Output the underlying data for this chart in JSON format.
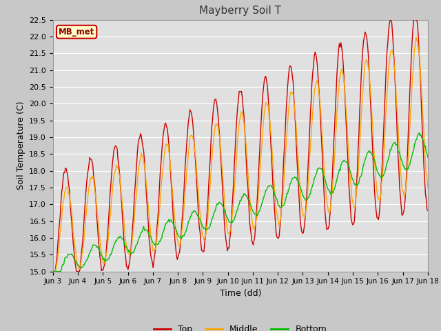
{
  "title": "Mayberry Soil T",
  "xlabel": "Time (dd)",
  "ylabel": "Soil Temperature (C)",
  "ylim": [
    15.0,
    22.5
  ],
  "yticks": [
    15.0,
    15.5,
    16.0,
    16.5,
    17.0,
    17.5,
    18.0,
    18.5,
    19.0,
    19.5,
    20.0,
    20.5,
    21.0,
    21.5,
    22.0,
    22.5
  ],
  "xtick_labels": [
    "Jun 3",
    "Jun 4",
    "Jun 5",
    "Jun 6",
    "Jun 7",
    "Jun 8",
    "Jun 9",
    "Jun 10",
    "Jun 11",
    "Jun 12",
    "Jun 13",
    "Jun 14",
    "Jun 15",
    "Jun 16",
    "Jun 17",
    "Jun 18"
  ],
  "legend_label": "MB_met",
  "legend_box_facecolor": "#ffffcc",
  "legend_box_edgecolor": "#cc0000",
  "series_top_color": "#cc0000",
  "series_middle_color": "#ffa500",
  "series_bottom_color": "#00bb00",
  "fig_facecolor": "#c8c8c8",
  "ax_facecolor": "#e0e0e0",
  "grid_color": "#ffffff",
  "n_points": 480
}
